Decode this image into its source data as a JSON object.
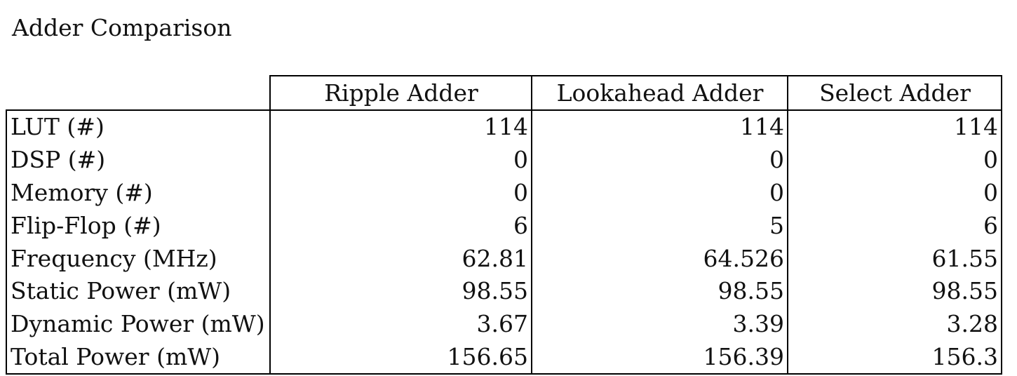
{
  "title": "Adder Comparison",
  "table": {
    "columns": [
      "Ripple Adder",
      "Lookahead Adder",
      "Select Adder"
    ],
    "rows": [
      {
        "label": "LUT (#)",
        "values": [
          "114",
          "114",
          "114"
        ]
      },
      {
        "label": "DSP (#)",
        "values": [
          "0",
          "0",
          "0"
        ]
      },
      {
        "label": "Memory (#)",
        "values": [
          "0",
          "0",
          "0"
        ]
      },
      {
        "label": "Flip-Flop (#)",
        "values": [
          "6",
          "5",
          "6"
        ]
      },
      {
        "label": "Frequency (MHz)",
        "values": [
          "62.81",
          "64.526",
          "61.55"
        ]
      },
      {
        "label": "Static Power (mW)",
        "values": [
          "98.55",
          "98.55",
          "98.55"
        ]
      },
      {
        "label": "Dynamic Power (mW)",
        "values": [
          "3.67",
          "3.39",
          "3.28"
        ]
      },
      {
        "label": "Total Power (mW)",
        "values": [
          "156.65",
          "156.39",
          "156.3"
        ]
      }
    ]
  }
}
